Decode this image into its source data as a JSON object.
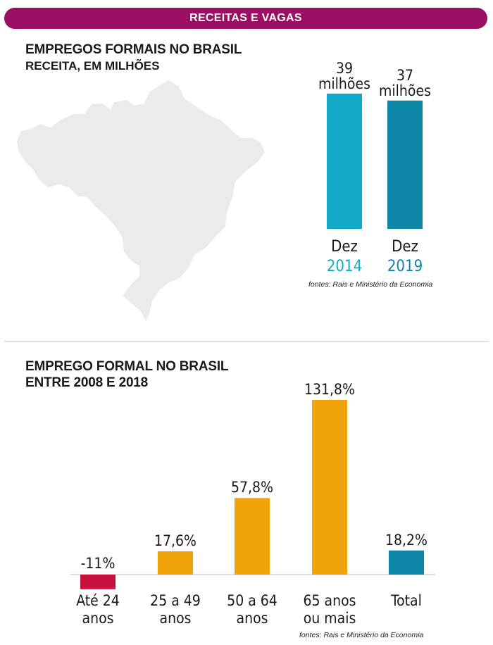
{
  "banner": {
    "label": "RECEITAS E VAGAS"
  },
  "top": {
    "title": "EMPREGOS FORMAIS NO BRASIL",
    "subtitle": "RECEITA, EM MILHÕES",
    "source": "fontes: Rais e Ministério da Economia"
  },
  "bottom": {
    "title_line1": "EMPREGO FORMAL NO BRASIL",
    "title_line2": "ENTRE 2008 E 2018",
    "source": "fontes: Rais e Ministério da Economia"
  },
  "colors": {
    "banner": "#9a0f63",
    "map": "#ebebee",
    "teal_light": "#10a9c7",
    "teal_dark": "#0e86a8",
    "orange": "#f0a30a",
    "crimson": "#c8103e"
  },
  "chart_data": [
    {
      "type": "bar",
      "title": "EMPREGOS FORMAIS NO BRASIL",
      "subtitle": "RECEITA, EM MILHÕES",
      "categories": [
        "Dez 2014",
        "Dez 2019"
      ],
      "values": [
        39,
        37
      ],
      "bars": [
        {
          "value": 39,
          "value_label": "39",
          "unit_label": "milhões",
          "cat_line1": "Dez",
          "cat_line2": "2014",
          "color": "#10a9c7"
        },
        {
          "value": 37,
          "value_label": "37",
          "unit_label": "milhões",
          "cat_line1": "Dez",
          "cat_line2": "2019",
          "color": "#0e86a8"
        }
      ],
      "ylim": [
        0,
        40
      ]
    },
    {
      "type": "bar",
      "title": "EMPREGO FORMAL NO BRASIL ENTRE 2008 E 2018",
      "categories": [
        "Até 24 anos",
        "25 a 49 anos",
        "50 a 64 anos",
        "65 anos ou mais",
        "Total"
      ],
      "values": [
        -11,
        17.6,
        57.8,
        131.8,
        18.2
      ],
      "bars": [
        {
          "value": -11,
          "label": "-11%",
          "cat_line1": "Até 24",
          "cat_line2": "anos",
          "color": "#c8103e"
        },
        {
          "value": 17.6,
          "label": "17,6%",
          "cat_line1": "25 a 49",
          "cat_line2": "anos",
          "color": "#f0a30a"
        },
        {
          "value": 57.8,
          "label": "57,8%",
          "cat_line1": "50 a 64",
          "cat_line2": "anos",
          "color": "#f0a30a"
        },
        {
          "value": 131.8,
          "label": "131,8%",
          "cat_line1": "65 anos",
          "cat_line2": "ou mais",
          "color": "#f0a30a"
        },
        {
          "value": 18.2,
          "label": "18,2%",
          "cat_line1": "Total",
          "cat_line2": "",
          "color": "#0e86a8"
        }
      ],
      "ylim": [
        -11,
        131.8
      ]
    }
  ]
}
